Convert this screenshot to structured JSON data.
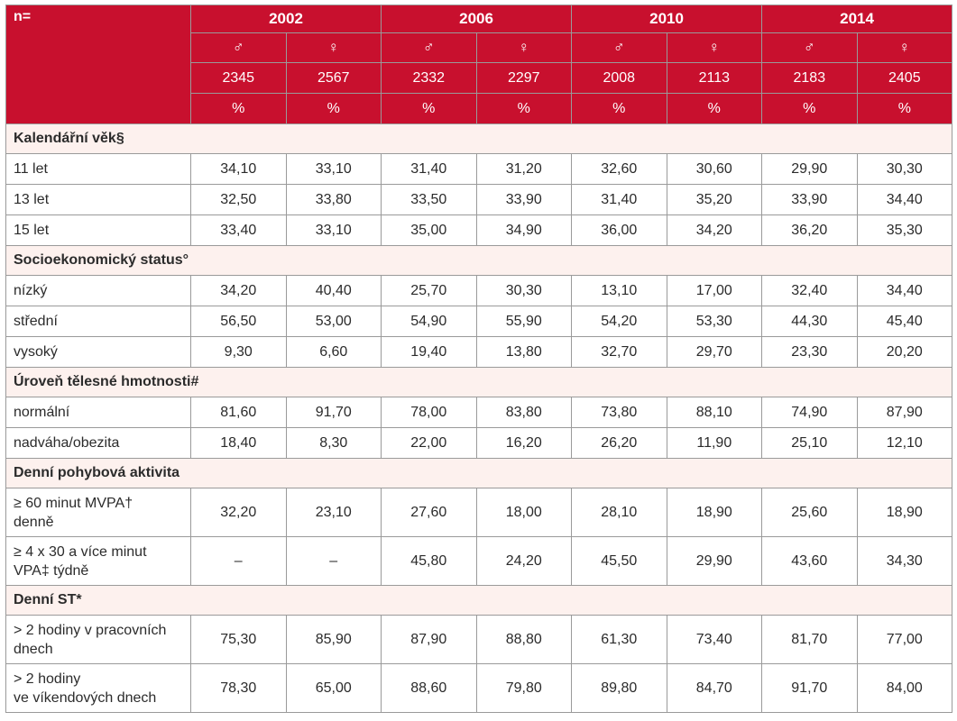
{
  "header": {
    "n_label": "n=",
    "years": [
      "2002",
      "2006",
      "2010",
      "2014"
    ],
    "sexes": [
      "♂",
      "♀",
      "♂",
      "♀",
      "♂",
      "♀",
      "♂",
      "♀"
    ],
    "counts": [
      "2345",
      "2567",
      "2332",
      "2297",
      "2008",
      "2113",
      "2183",
      "2405"
    ],
    "units": [
      "%",
      "%",
      "%",
      "%",
      "%",
      "%",
      "%",
      "%"
    ]
  },
  "sections": [
    {
      "title": "Kalendářní věk§",
      "rows": [
        {
          "label": "11 let",
          "values": [
            "34,10",
            "33,10",
            "31,40",
            "31,20",
            "32,60",
            "30,60",
            "29,90",
            "30,30"
          ]
        },
        {
          "label": "13 let",
          "values": [
            "32,50",
            "33,80",
            "33,50",
            "33,90",
            "31,40",
            "35,20",
            "33,90",
            "34,40"
          ]
        },
        {
          "label": "15 let",
          "values": [
            "33,40",
            "33,10",
            "35,00",
            "34,90",
            "36,00",
            "34,20",
            "36,20",
            "35,30"
          ]
        }
      ]
    },
    {
      "title": "Socioekonomický status°",
      "rows": [
        {
          "label": "nízký",
          "values": [
            "34,20",
            "40,40",
            "25,70",
            "30,30",
            "13,10",
            "17,00",
            "32,40",
            "34,40"
          ]
        },
        {
          "label": "střední",
          "values": [
            "56,50",
            "53,00",
            "54,90",
            "55,90",
            "54,20",
            "53,30",
            "44,30",
            "45,40"
          ]
        },
        {
          "label": "vysoký",
          "values": [
            "9,30",
            "6,60",
            "19,40",
            "13,80",
            "32,70",
            "29,70",
            "23,30",
            "20,20"
          ]
        }
      ]
    },
    {
      "title": "Úroveň tělesné hmotnosti#",
      "rows": [
        {
          "label": "normální",
          "values": [
            "81,60",
            "91,70",
            "78,00",
            "83,80",
            "73,80",
            "88,10",
            "74,90",
            "87,90"
          ]
        },
        {
          "label": "nadváha/obezita",
          "values": [
            "18,40",
            "8,30",
            "22,00",
            "16,20",
            "26,20",
            "11,90",
            "25,10",
            "12,10"
          ]
        }
      ]
    },
    {
      "title": "Denní pohybová aktivita",
      "rows": [
        {
          "label_lines": [
            "≥ 60 minut MVPA†",
            "denně"
          ],
          "values": [
            "32,20",
            "23,10",
            "27,60",
            "18,00",
            "28,10",
            "18,90",
            "25,60",
            "18,90"
          ]
        },
        {
          "label_lines": [
            "≥ 4 x 30 a více minut",
            "VPA‡ týdně"
          ],
          "values": [
            "–",
            "–",
            "45,80",
            "24,20",
            "45,50",
            "29,90",
            "43,60",
            "34,30"
          ]
        }
      ]
    },
    {
      "title": "Denní ST*",
      "rows": [
        {
          "label_lines": [
            "> 2 hodiny v pracovních",
            "dnech"
          ],
          "values": [
            "75,30",
            "85,90",
            "87,90",
            "88,80",
            "61,30",
            "73,40",
            "81,70",
            "77,00"
          ]
        },
        {
          "label_lines": [
            "> 2 hodiny",
            "ve víkendových dnech"
          ],
          "values": [
            "78,30",
            "65,00",
            "88,60",
            "79,80",
            "89,80",
            "84,70",
            "91,70",
            "84,00"
          ]
        }
      ]
    }
  ]
}
